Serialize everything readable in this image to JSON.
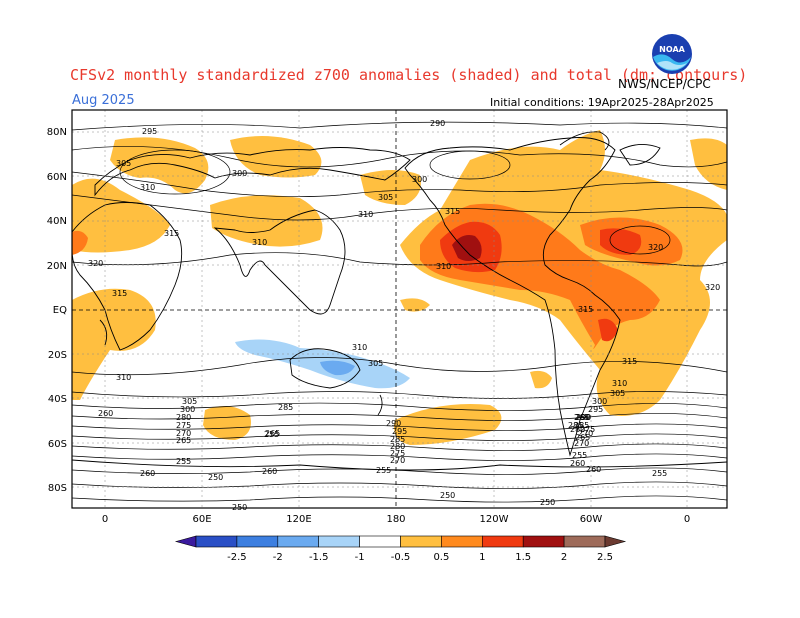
{
  "header": {
    "title": "CFSv2 monthly standardized z700 anomalies (shaded) and total (dm; contours)",
    "month": "Aug 2025",
    "initial_conditions": "Initial conditions: 19Apr2025-28Apr2025",
    "agency": "NWS/NCEP/CPC",
    "logo_text": "NOAA"
  },
  "axes": {
    "lat_labels": [
      "80N",
      "60N",
      "40N",
      "20N",
      "EQ",
      "20S",
      "40S",
      "60S",
      "80S"
    ],
    "lon_labels": [
      "0",
      "60E",
      "120E",
      "180",
      "120W",
      "60W",
      "0"
    ]
  },
  "colorbar": {
    "labels": [
      "-2.5",
      "-2",
      "-1.5",
      "-1",
      "-0.5",
      "0.5",
      "1",
      "1.5",
      "2",
      "2.5"
    ],
    "colors": [
      "#3a1a9e",
      "#2a4fc6",
      "#3d7fe0",
      "#6aaaf0",
      "#a8d4f8",
      "#ffffff",
      "#ffbf40",
      "#ff8a1e",
      "#f03a10",
      "#a01010",
      "#9e6b5a",
      "#6b3a30"
    ]
  },
  "contour_labels": [
    "295",
    "305",
    "310",
    "315",
    "320",
    "300",
    "310",
    "290",
    "300",
    "305",
    "310",
    "315",
    "320",
    "310",
    "315",
    "315",
    "310",
    "310",
    "305",
    "305",
    "300",
    "290",
    "285",
    "280",
    "275",
    "270",
    "265",
    "260",
    "255",
    "250",
    "295",
    "285",
    "280",
    "275",
    "270",
    "265",
    "260",
    "255",
    "250",
    "265",
    "270",
    "280",
    "285",
    "260",
    "255",
    "250",
    "255",
    "260",
    "255",
    "250",
    "260",
    "265",
    "270",
    "275",
    "280",
    "285",
    "290",
    "295",
    "300",
    "305",
    "310",
    "315",
    "320"
  ]
}
